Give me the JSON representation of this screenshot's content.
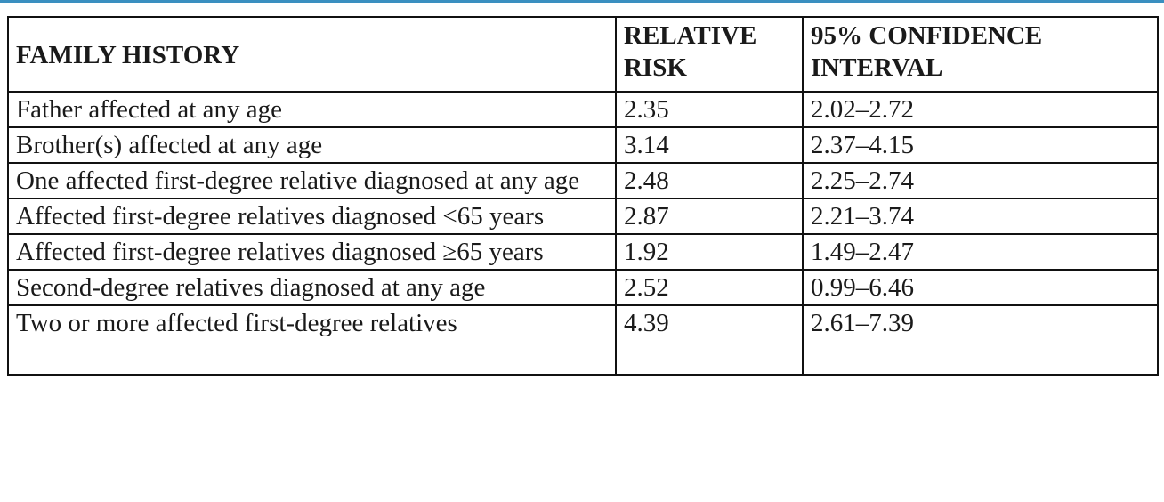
{
  "table": {
    "headers": {
      "family_history": "FAMILY HISTORY",
      "relative_risk_line1": "RELATIVE",
      "relative_risk_line2": "RISK",
      "ci_line1": "95% CONFIDENCE",
      "ci_line2": "INTERVAL"
    },
    "rows": [
      {
        "history": "Father affected at any age",
        "risk": "2.35",
        "ci": "2.02–2.72"
      },
      {
        "history": "Brother(s) affected at any age",
        "risk": "3.14",
        "ci": "2.37–4.15"
      },
      {
        "history": "One affected first-degree relative diagnosed at any age",
        "risk": "2.48",
        "ci": "2.25–2.74"
      },
      {
        "history": "Affected first-degree relatives diagnosed <65 years",
        "risk": "2.87",
        "ci": "2.21–3.74"
      },
      {
        "history": "Affected first-degree relatives diagnosed ≥65 years",
        "risk": "1.92",
        "ci": "1.49–2.47"
      },
      {
        "history": "Second-degree relatives diagnosed at any age",
        "risk": "2.52",
        "ci": "0.99–6.46"
      },
      {
        "history": "Two or more affected first-degree relatives",
        "risk": "4.39",
        "ci": "2.61–7.39"
      }
    ]
  },
  "colors": {
    "top_rule": "#3a8fc0",
    "border": "#111111",
    "text": "#1a1a1a"
  }
}
